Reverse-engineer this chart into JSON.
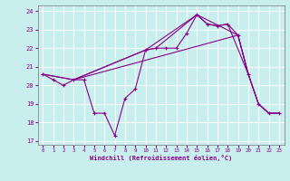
{
  "xlabel": "Windchill (Refroidissement éolien,°C)",
  "line_color": "#880088",
  "bg_color": "#c8eeee",
  "grid_color": "#ffffff",
  "xlim": [
    -0.5,
    23.5
  ],
  "ylim": [
    16.8,
    24.3
  ],
  "xticks": [
    0,
    1,
    2,
    3,
    4,
    5,
    6,
    7,
    8,
    9,
    10,
    11,
    12,
    13,
    14,
    15,
    16,
    17,
    18,
    19,
    20,
    21,
    22,
    23
  ],
  "yticks": [
    17,
    18,
    19,
    20,
    21,
    22,
    23,
    24
  ],
  "series1_x": [
    0,
    1,
    2,
    3,
    4,
    5,
    6,
    7,
    8,
    9,
    10,
    11,
    12,
    13,
    14,
    15,
    16,
    17,
    18,
    19,
    20,
    21,
    22,
    23
  ],
  "series1_y": [
    20.6,
    20.3,
    20.0,
    20.3,
    20.3,
    18.5,
    18.5,
    17.3,
    19.3,
    19.8,
    21.9,
    22.0,
    22.0,
    22.0,
    22.8,
    23.8,
    23.3,
    23.2,
    23.3,
    22.7,
    20.6,
    19.0,
    18.5,
    18.5
  ],
  "series2_x": [
    0,
    3,
    10,
    15,
    19,
    20,
    21,
    22,
    23
  ],
  "series2_y": [
    20.6,
    20.3,
    21.9,
    23.8,
    22.7,
    20.6,
    19.0,
    18.5,
    18.5
  ],
  "series3_x": [
    0,
    3,
    19,
    20,
    21,
    22,
    23
  ],
  "series3_y": [
    20.6,
    20.3,
    22.7,
    20.6,
    19.0,
    18.5,
    18.5
  ],
  "series4_x": [
    3,
    10,
    11,
    15,
    16,
    17,
    18,
    20
  ],
  "series4_y": [
    20.3,
    21.9,
    22.0,
    23.8,
    23.3,
    23.2,
    23.3,
    20.6
  ]
}
